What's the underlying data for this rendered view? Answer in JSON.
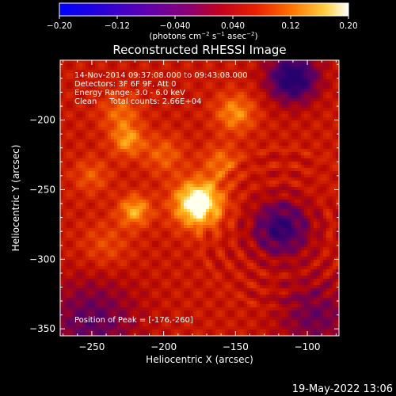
{
  "chart_data": {
    "type": "heatmap",
    "title": "Reconstructed RHESSI Image",
    "xlabel": "Heliocentric X (arcsec)",
    "ylabel": "Heliocentric Y (arcsec)",
    "xlim": [
      -272,
      -78
    ],
    "ylim": [
      -355,
      -157
    ],
    "x_ticks": [
      -250,
      -200,
      -150,
      -100
    ],
    "x_tick_labels": [
      "−250",
      "−200",
      "−150",
      "−100"
    ],
    "y_ticks": [
      -200,
      -250,
      -300,
      -350
    ],
    "y_tick_labels": [
      "−200",
      "−250",
      "−300",
      "−350"
    ],
    "colorbar": {
      "range": [
        -0.2,
        0.2
      ],
      "ticks": [
        -0.2,
        -0.12,
        -0.04,
        0.04,
        0.12,
        0.2
      ],
      "tick_labels": [
        "−0.20",
        "−0.12",
        "−0.040",
        "0.040",
        "0.12",
        "0.20"
      ],
      "units_prefix": "(photons cm",
      "units_sup1": "−2",
      "units_mid1": " s",
      "units_sup2": "−1",
      "units_mid2": " asec",
      "units_sup3": "−2",
      "units_suffix": ")"
    },
    "annotations": {
      "time_range": "14-Nov-2014 09:37:08.000 to 09:43:08.000",
      "detectors": "Detectors: 3F 6F 9F, Att 0",
      "energy": "Energy Range: 3.0 - 6.0 keV",
      "clean": "Clean     Total counts: 2.66E+04",
      "peak": "Position of Peak = [-176,-260]"
    },
    "peak": [
      -176,
      -260
    ],
    "timestamp": "19-May-2022 13:06"
  }
}
